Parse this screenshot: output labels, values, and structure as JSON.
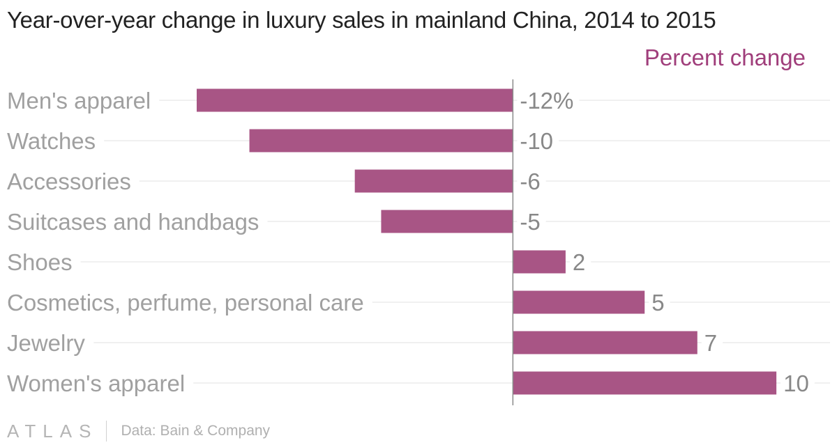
{
  "chart_data": {
    "type": "bar",
    "orientation": "horizontal",
    "title": "Year-over-year change in luxury sales in mainland China, 2014 to 2015",
    "series_label": "Percent change",
    "categories": [
      "Men's apparel",
      "Watches",
      "Accessories",
      "Suitcases and handbags",
      "Shoes",
      "Cosmetics, perfume, personal care",
      "Jewelry",
      "Women's apparel"
    ],
    "values": [
      -12,
      -10,
      -6,
      -5,
      2,
      5,
      7,
      10
    ],
    "value_labels": [
      "-12%",
      "-10",
      "-6",
      "-5",
      "2",
      "5",
      "7",
      "10"
    ],
    "xlim": [
      -19.2,
      12.3
    ],
    "grid": true,
    "bar_color": "#a85585",
    "label_color": "#a0a0a0",
    "header_color": "#a03e7b"
  },
  "footer": {
    "brand": "ATLAS",
    "source": "Data: Bain & Company"
  }
}
